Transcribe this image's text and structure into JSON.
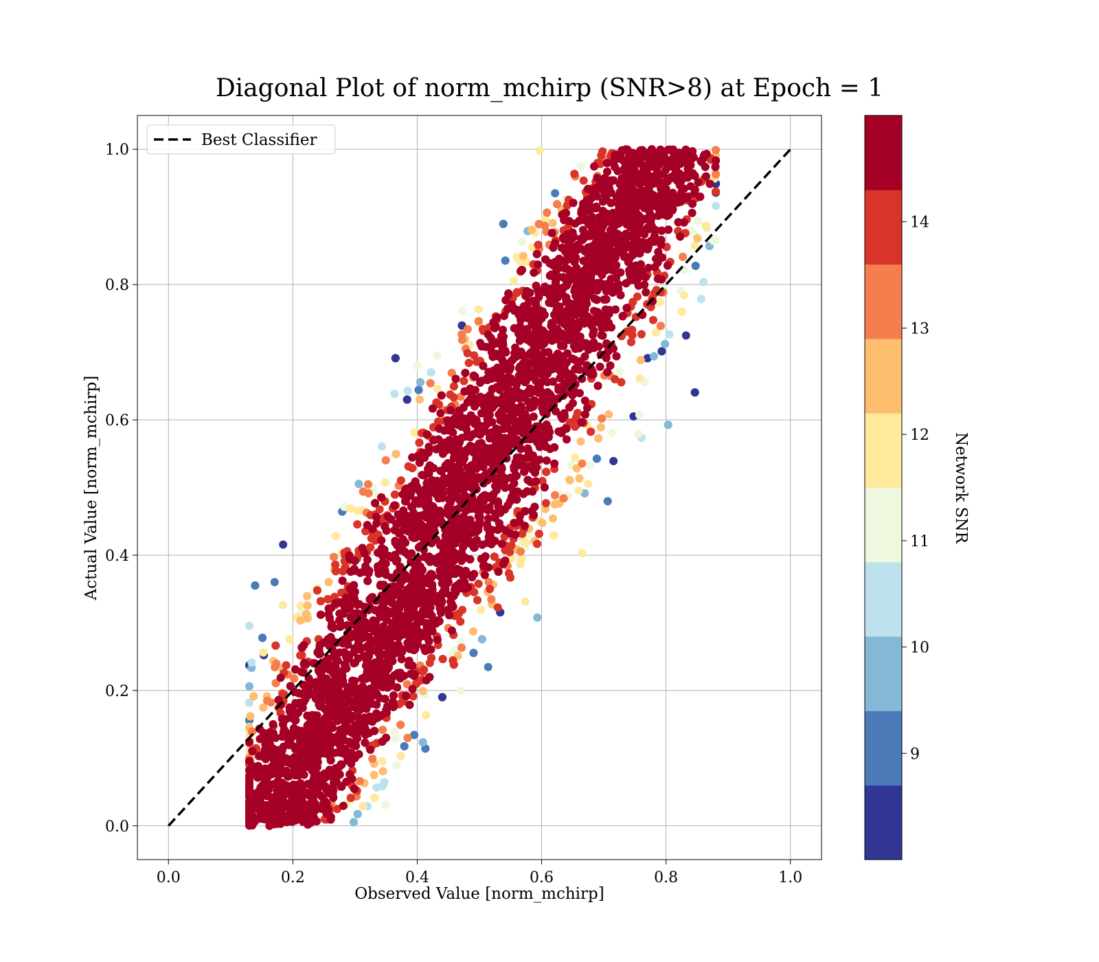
{
  "chart_data": {
    "type": "scatter",
    "title": "Diagonal Plot of norm_mchirp (SNR>8) at Epoch = 1",
    "xlabel": "Observed Value [norm_mchirp]",
    "ylabel": "Actual Value [norm_mchirp]",
    "xlim": [
      -0.05,
      1.05
    ],
    "ylim": [
      -0.05,
      1.05
    ],
    "xticks": [
      "0.0",
      "0.2",
      "0.4",
      "0.6",
      "0.8",
      "1.0"
    ],
    "yticks": [
      "0.0",
      "0.2",
      "0.4",
      "0.6",
      "0.8",
      "1.0"
    ],
    "grid": true,
    "legend": {
      "placement": "top-left",
      "entries": [
        {
          "label": "Best Classifier",
          "style": "dashed",
          "color": "#000000"
        }
      ]
    },
    "reference_line": {
      "name": "Best Classifier",
      "x": [
        0.0,
        1.0
      ],
      "y": [
        0.0,
        1.0
      ]
    },
    "colorbar": {
      "label": "Network SNR",
      "range": [
        8,
        15
      ],
      "ticks": [
        "9",
        "10",
        "11",
        "12",
        "13",
        "14"
      ],
      "colors": [
        "#313695",
        "#4a7ab7",
        "#83b8d7",
        "#bde2ee",
        "#edf8df",
        "#fee99d",
        "#fdbe70",
        "#f57e4e",
        "#d93429",
        "#a50026"
      ]
    },
    "points_description": {
      "count_approx": 45000,
      "x_range": [
        0.13,
        0.88
      ],
      "y_range": [
        0.0,
        1.0
      ],
      "dense_band_snr": 14.5
    }
  }
}
